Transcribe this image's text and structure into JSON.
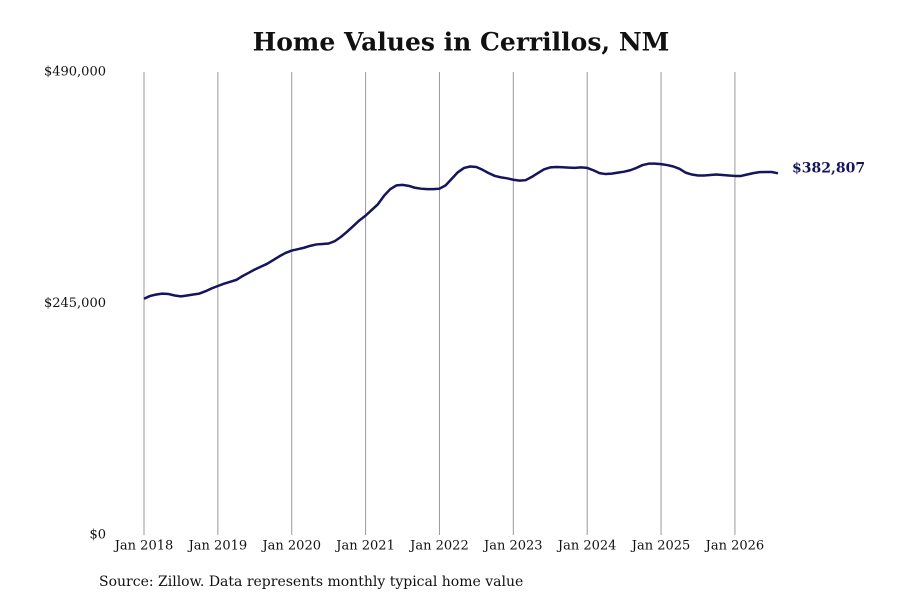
{
  "chart_data": {
    "type": "line",
    "title": "Home Values in Cerrillos, NM",
    "source": "Source: Zillow. Data represents monthly typical home value",
    "x": [
      "2018-01",
      "2018-02",
      "2018-03",
      "2018-04",
      "2018-05",
      "2018-06",
      "2018-07",
      "2018-08",
      "2018-09",
      "2018-10",
      "2018-11",
      "2018-12",
      "2019-01",
      "2019-02",
      "2019-03",
      "2019-04",
      "2019-05",
      "2019-06",
      "2019-07",
      "2019-08",
      "2019-09",
      "2019-10",
      "2019-11",
      "2019-12",
      "2020-01",
      "2020-02",
      "2020-03",
      "2020-04",
      "2020-05",
      "2020-06",
      "2020-07",
      "2020-08",
      "2020-09",
      "2020-10",
      "2020-11",
      "2020-12",
      "2021-01",
      "2021-02",
      "2021-03",
      "2021-04",
      "2021-05",
      "2021-06",
      "2021-07",
      "2021-08",
      "2021-09",
      "2021-10",
      "2021-11",
      "2021-12",
      "2022-01",
      "2022-02",
      "2022-03",
      "2022-04",
      "2022-05",
      "2022-06",
      "2022-07",
      "2022-08",
      "2022-09",
      "2022-10",
      "2022-11",
      "2022-12",
      "2023-01",
      "2023-02",
      "2023-03",
      "2023-04",
      "2023-05",
      "2023-06",
      "2023-07",
      "2023-08",
      "2023-09",
      "2023-10",
      "2023-11",
      "2023-12",
      "2024-01",
      "2024-02",
      "2024-03",
      "2024-04",
      "2024-05",
      "2024-06",
      "2024-07",
      "2024-08",
      "2024-09",
      "2024-10",
      "2024-11",
      "2024-12",
      "2025-01",
      "2025-02",
      "2025-03",
      "2025-04",
      "2025-05",
      "2025-06",
      "2025-07",
      "2025-08",
      "2025-09",
      "2025-10",
      "2025-11",
      "2025-12",
      "2026-01",
      "2026-02",
      "2026-03",
      "2026-04",
      "2026-05",
      "2026-06",
      "2026-07",
      "2026-08"
    ],
    "values": [
      250000,
      253000,
      254500,
      255500,
      255000,
      253500,
      252500,
      253500,
      254500,
      255500,
      258000,
      261000,
      263500,
      266000,
      268000,
      270000,
      274000,
      277500,
      281000,
      284000,
      287000,
      291000,
      295000,
      298500,
      301000,
      302500,
      304000,
      306000,
      307500,
      308000,
      308500,
      311000,
      315500,
      321000,
      327000,
      333000,
      338000,
      344000,
      350000,
      359000,
      366000,
      370000,
      370500,
      369500,
      367500,
      366500,
      366000,
      366000,
      366500,
      370000,
      377000,
      384000,
      388500,
      390000,
      389500,
      386500,
      383000,
      380000,
      378500,
      377500,
      376000,
      375000,
      375500,
      379000,
      383000,
      387000,
      389000,
      389500,
      389200,
      388800,
      388500,
      389000,
      388500,
      386000,
      383000,
      382000,
      382500,
      383500,
      384500,
      386000,
      388500,
      391500,
      393000,
      393000,
      392500,
      391500,
      390000,
      387500,
      383500,
      381500,
      380500,
      380500,
      381000,
      381500,
      381000,
      380500,
      380000,
      380000,
      381500,
      383000,
      384000,
      384200,
      384200,
      382807
    ],
    "value_labels": [
      null,
      null,
      null,
      null,
      null,
      null,
      null,
      null,
      null,
      null,
      null,
      null,
      null,
      null,
      null,
      null,
      null,
      null,
      null,
      null,
      null,
      null,
      null,
      null,
      null,
      null,
      null,
      null,
      null,
      null,
      null,
      null,
      null,
      null,
      null,
      null,
      null,
      null,
      null,
      null,
      null,
      null,
      null,
      null,
      null,
      null,
      null,
      null,
      null,
      null,
      null,
      null,
      null,
      null,
      null,
      null,
      null,
      null,
      null,
      null,
      null,
      null,
      null,
      null,
      null,
      null,
      null,
      null,
      null,
      null,
      null,
      null,
      null,
      null,
      null,
      null,
      null,
      null,
      null,
      null,
      null,
      null,
      null,
      null,
      null,
      null,
      null,
      null,
      null,
      null,
      null,
      null,
      null,
      null,
      null,
      null,
      null,
      null,
      null,
      null,
      null,
      null,
      null,
      "$382,807"
    ],
    "color": "#15145c",
    "ylim": [
      0,
      490000
    ],
    "yticks": [
      {
        "value": 0,
        "label": "$0"
      },
      {
        "value": 245000,
        "label": "$245,000"
      },
      {
        "value": 490000,
        "label": "$490,000"
      }
    ],
    "xticks": [
      {
        "value": "2018-01",
        "label": "Jan 2018"
      },
      {
        "value": "2019-01",
        "label": "Jan 2019"
      },
      {
        "value": "2020-01",
        "label": "Jan 2020"
      },
      {
        "value": "2021-01",
        "label": "Jan 2021"
      },
      {
        "value": "2022-01",
        "label": "Jan 2022"
      },
      {
        "value": "2023-01",
        "label": "Jan 2023"
      },
      {
        "value": "2024-01",
        "label": "Jan 2024"
      },
      {
        "value": "2025-01",
        "label": "Jan 2025"
      },
      {
        "value": "2026-01",
        "label": "Jan 2026"
      }
    ],
    "grid": "x"
  }
}
